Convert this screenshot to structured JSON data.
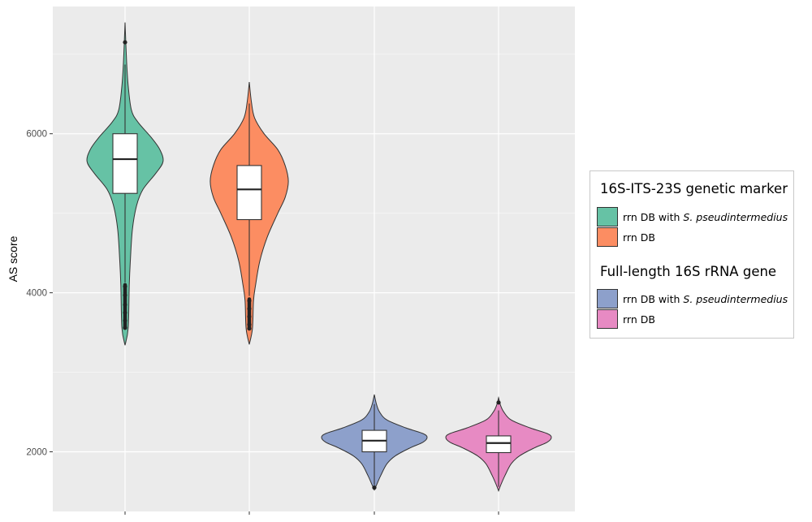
{
  "chart_data": {
    "type": "violin",
    "title": "",
    "xlabel": "",
    "ylabel": "AS score",
    "ylim": [
      1250,
      7600
    ],
    "yticks": [
      2000,
      4000,
      6000
    ],
    "grid": true,
    "legend_placement": "right",
    "legend_groups": [
      {
        "title": "16S-ITS-23S genetic marker",
        "entries": [
          {
            "label_prefix": "rrn DB with ",
            "label_italic": "S. pseudintermedius",
            "color": "#66c2a5"
          },
          {
            "label_prefix": "rrn DB",
            "label_italic": "",
            "color": "#fc8d62"
          }
        ]
      },
      {
        "title": "Full-length 16S rRNA gene",
        "entries": [
          {
            "label_prefix": "rrn DB with ",
            "label_italic": "S. pseudintermedius",
            "color": "#8da0cb"
          },
          {
            "label_prefix": "rrn DB",
            "label_italic": "",
            "color": "#e78ac3"
          }
        ]
      }
    ],
    "series": [
      {
        "name": "rrn DB with S. pseudintermedius",
        "marker": "16S-ITS-23S",
        "color": "#66c2a5",
        "box": {
          "q1": 5250,
          "median": 5680,
          "q3": 6000,
          "whisker_low": 4130,
          "whisker_high": 6870
        },
        "outliers": [
          7150,
          4080,
          3970,
          3850,
          3750,
          3650,
          3560
        ],
        "density": [
          [
            3340,
            0
          ],
          [
            3560,
            0.03
          ],
          [
            4100,
            0.04
          ],
          [
            4400,
            0.05
          ],
          [
            4800,
            0.07
          ],
          [
            5100,
            0.11
          ],
          [
            5300,
            0.17
          ],
          [
            5500,
            0.29
          ],
          [
            5650,
            0.36
          ],
          [
            5800,
            0.33
          ],
          [
            5950,
            0.25
          ],
          [
            6150,
            0.12
          ],
          [
            6300,
            0.06
          ],
          [
            6600,
            0.03
          ],
          [
            6900,
            0.015
          ],
          [
            7400,
            0
          ]
        ]
      },
      {
        "name": "rrn DB",
        "marker": "16S-ITS-23S",
        "color": "#fc8d62",
        "box": {
          "q1": 4920,
          "median": 5300,
          "q3": 5600,
          "whisker_low": 3960,
          "whisker_high": 6380
        },
        "outliers": [
          3900,
          3800,
          3700,
          3600,
          3550
        ],
        "density": [
          [
            3350,
            0
          ],
          [
            3550,
            0.03
          ],
          [
            3900,
            0.04
          ],
          [
            4100,
            0.06
          ],
          [
            4400,
            0.1
          ],
          [
            4700,
            0.17
          ],
          [
            5000,
            0.27
          ],
          [
            5200,
            0.34
          ],
          [
            5400,
            0.37
          ],
          [
            5600,
            0.34
          ],
          [
            5800,
            0.27
          ],
          [
            6000,
            0.14
          ],
          [
            6200,
            0.05
          ],
          [
            6400,
            0.02
          ],
          [
            6650,
            0
          ]
        ]
      },
      {
        "name": "rrn DB with S. pseudintermedius",
        "marker": "Full-length 16S",
        "color": "#8da0cb",
        "box": {
          "q1": 2000,
          "median": 2140,
          "q3": 2270,
          "whisker_low": 1580,
          "whisker_high": 2600
        },
        "outliers": [
          1550
        ],
        "density": [
          [
            1520,
            0
          ],
          [
            1580,
            0.02
          ],
          [
            1700,
            0.06
          ],
          [
            1850,
            0.12
          ],
          [
            1950,
            0.2
          ],
          [
            2050,
            0.34
          ],
          [
            2120,
            0.46
          ],
          [
            2180,
            0.5
          ],
          [
            2230,
            0.46
          ],
          [
            2300,
            0.3
          ],
          [
            2400,
            0.12
          ],
          [
            2500,
            0.05
          ],
          [
            2600,
            0.02
          ],
          [
            2720,
            0
          ]
        ]
      },
      {
        "name": "rrn DB",
        "marker": "Full-length 16S",
        "color": "#e78ac3",
        "box": {
          "q1": 1990,
          "median": 2110,
          "q3": 2200,
          "whisker_low": 1560,
          "whisker_high": 2520
        },
        "outliers": [
          2620
        ],
        "density": [
          [
            1510,
            0
          ],
          [
            1580,
            0.02
          ],
          [
            1700,
            0.06
          ],
          [
            1850,
            0.12
          ],
          [
            1950,
            0.2
          ],
          [
            2050,
            0.34
          ],
          [
            2120,
            0.46
          ],
          [
            2180,
            0.5
          ],
          [
            2230,
            0.46
          ],
          [
            2300,
            0.3
          ],
          [
            2400,
            0.12
          ],
          [
            2500,
            0.05
          ],
          [
            2580,
            0.02
          ],
          [
            2680,
            0
          ]
        ]
      }
    ]
  }
}
